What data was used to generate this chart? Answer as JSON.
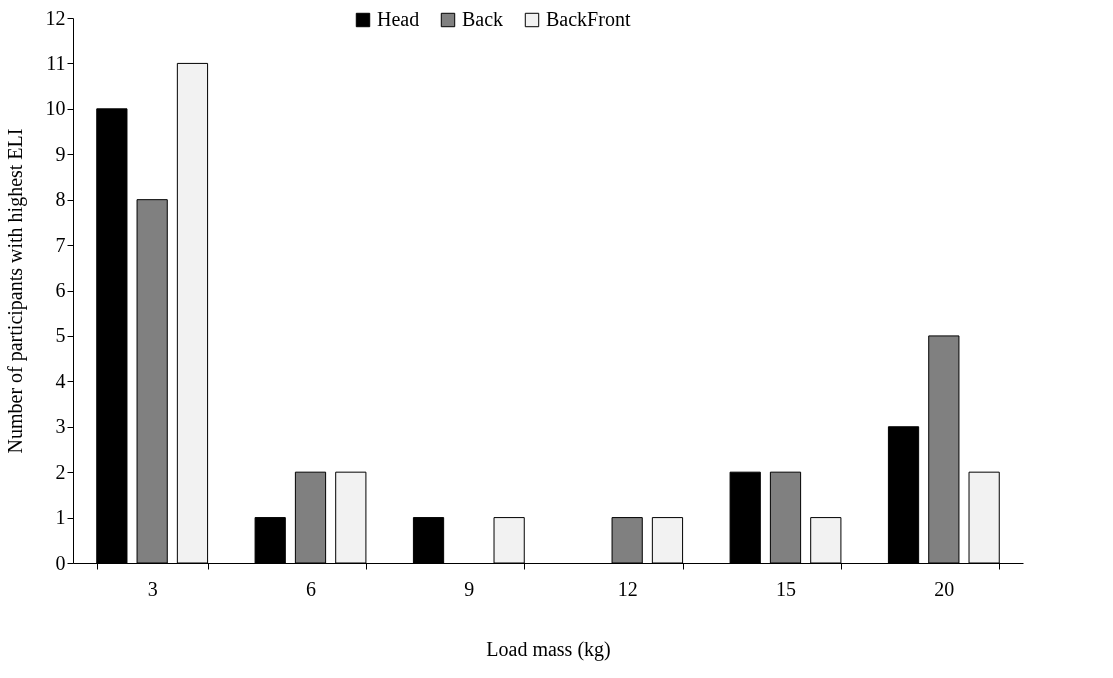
{
  "chart_data": {
    "type": "bar",
    "xlabel": "Load mass (kg)",
    "ylabel": "Number of participants with highest ELI",
    "categories": [
      "3",
      "6",
      "9",
      "12",
      "15",
      "20"
    ],
    "series": [
      {
        "name": "Head",
        "color": "#000000",
        "values": [
          10,
          1,
          1,
          0,
          2,
          3
        ]
      },
      {
        "name": "Back",
        "color": "#808080",
        "values": [
          8,
          2,
          0,
          1,
          2,
          5
        ]
      },
      {
        "name": "BackFront",
        "color": "#f2f2f2",
        "values": [
          11,
          2,
          1,
          1,
          1,
          2
        ]
      }
    ],
    "ylim": [
      0,
      12
    ],
    "yticks": [
      0,
      1,
      2,
      3,
      4,
      5,
      6,
      7,
      8,
      9,
      10,
      11,
      12
    ],
    "grid": false,
    "legend": "top"
  }
}
